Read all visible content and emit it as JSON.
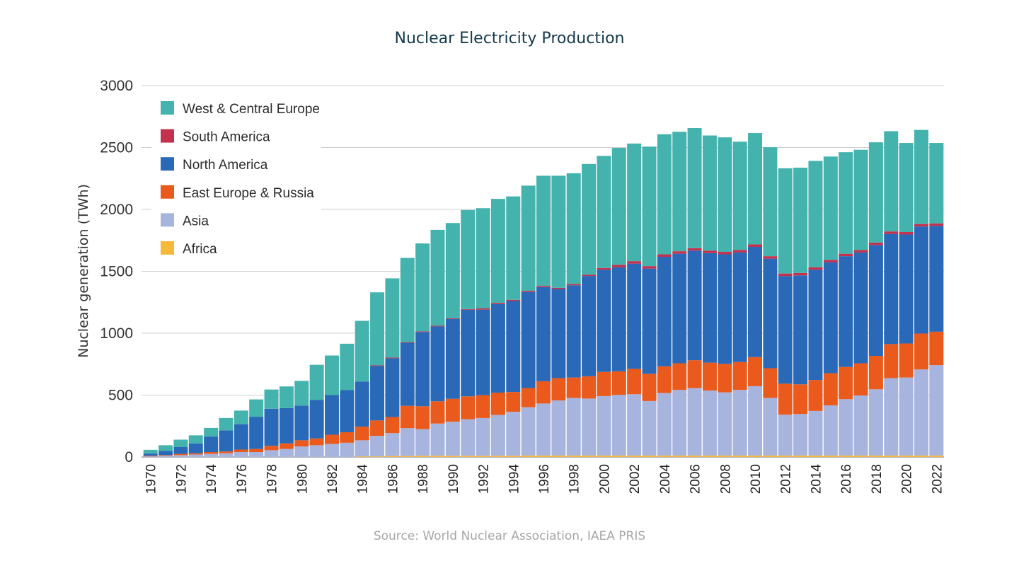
{
  "chart_data": {
    "type": "bar",
    "stacked": true,
    "title": "Nuclear Electricity Production",
    "ylabel": "Nuclear generation (TWh)",
    "xlabel": "",
    "ylim": [
      0,
      3000
    ],
    "yticks": [
      0,
      500,
      1000,
      1500,
      2000,
      2500,
      3000
    ],
    "grid": true,
    "legend_position": "top-left",
    "source": "Source: World Nuclear Association, IAEA PRIS",
    "categories": [
      "1970",
      "1971",
      "1972",
      "1973",
      "1974",
      "1975",
      "1976",
      "1977",
      "1978",
      "1979",
      "1980",
      "1981",
      "1982",
      "1983",
      "1984",
      "1985",
      "1986",
      "1987",
      "1988",
      "1989",
      "1990",
      "1991",
      "1992",
      "1993",
      "1994",
      "1995",
      "1996",
      "1997",
      "1998",
      "1999",
      "2000",
      "2001",
      "2002",
      "2003",
      "2004",
      "2005",
      "2006",
      "2007",
      "2008",
      "2009",
      "2010",
      "2011",
      "2012",
      "2013",
      "2014",
      "2015",
      "2016",
      "2017",
      "2018",
      "2019",
      "2020",
      "2021",
      "2022"
    ],
    "xtick_labels": [
      "1970",
      "",
      "1972",
      "",
      "1974",
      "",
      "1976",
      "",
      "1978",
      "",
      "1980",
      "",
      "1982",
      "",
      "1984",
      "",
      "1986",
      "",
      "1988",
      "",
      "1990",
      "",
      "1992",
      "",
      "1994",
      "",
      "1996",
      "",
      "1998",
      "",
      "2000",
      "",
      "2002",
      "",
      "2004",
      "",
      "2006",
      "",
      "2008",
      "",
      "2010",
      "",
      "2012",
      "",
      "2014",
      "",
      "2016",
      "",
      "2018",
      "",
      "2020",
      "",
      "2022"
    ],
    "series": [
      {
        "name": "Africa",
        "color": "#f7b93c",
        "values": [
          0,
          0,
          0,
          0,
          0,
          0,
          0,
          0,
          0,
          0,
          0,
          0,
          0,
          0,
          5,
          5,
          8,
          8,
          10,
          10,
          10,
          10,
          10,
          10,
          10,
          12,
          12,
          12,
          12,
          12,
          12,
          12,
          12,
          12,
          12,
          12,
          12,
          12,
          12,
          12,
          12,
          12,
          12,
          12,
          12,
          12,
          12,
          12,
          12,
          12,
          12,
          12,
          12
        ]
      },
      {
        "name": "Asia",
        "color": "#a7b4de",
        "values": [
          5,
          10,
          15,
          20,
          25,
          30,
          40,
          40,
          55,
          65,
          85,
          95,
          105,
          115,
          130,
          165,
          185,
          225,
          215,
          260,
          275,
          295,
          305,
          330,
          355,
          390,
          420,
          445,
          465,
          460,
          480,
          490,
          495,
          440,
          505,
          530,
          545,
          525,
          510,
          530,
          560,
          465,
          330,
          335,
          360,
          405,
          455,
          485,
          535,
          625,
          630,
          695,
          730
        ]
      },
      {
        "name": "East Europe & Russia",
        "color": "#ea5a1c",
        "values": [
          5,
          5,
          10,
          10,
          15,
          15,
          20,
          25,
          35,
          45,
          50,
          55,
          75,
          85,
          110,
          125,
          130,
          180,
          185,
          180,
          185,
          185,
          185,
          180,
          160,
          155,
          180,
          180,
          165,
          180,
          195,
          190,
          205,
          220,
          215,
          215,
          225,
          225,
          230,
          225,
          235,
          240,
          250,
          240,
          250,
          260,
          260,
          260,
          270,
          275,
          275,
          290,
          270
        ]
      },
      {
        "name": "North America",
        "color": "#2969b7",
        "values": [
          18,
          35,
          55,
          80,
          125,
          170,
          205,
          260,
          300,
          285,
          280,
          310,
          320,
          340,
          365,
          440,
          475,
          510,
          600,
          605,
          645,
          700,
          690,
          715,
          735,
          775,
          760,
          720,
          745,
          810,
          825,
          840,
          850,
          850,
          885,
          885,
          885,
          885,
          885,
          885,
          890,
          885,
          870,
          880,
          890,
          895,
          895,
          895,
          895,
          890,
          880,
          865,
          855
        ]
      },
      {
        "name": "South America",
        "color": "#c4314f",
        "values": [
          0,
          0,
          0,
          0,
          0,
          0,
          0,
          0,
          0,
          0,
          0,
          0,
          0,
          0,
          0,
          5,
          5,
          5,
          5,
          5,
          5,
          5,
          10,
          10,
          10,
          10,
          10,
          10,
          10,
          10,
          15,
          20,
          20,
          20,
          20,
          20,
          20,
          20,
          20,
          20,
          20,
          20,
          20,
          20,
          20,
          20,
          20,
          20,
          20,
          20,
          20,
          20,
          20
        ]
      },
      {
        "name": "West & Central Europe",
        "color": "#45b3ad",
        "values": [
          30,
          45,
          60,
          65,
          70,
          100,
          110,
          140,
          155,
          175,
          200,
          285,
          320,
          375,
          490,
          590,
          640,
          680,
          710,
          775,
          770,
          800,
          810,
          840,
          835,
          850,
          890,
          905,
          895,
          895,
          905,
          945,
          950,
          965,
          970,
          965,
          970,
          930,
          925,
          875,
          900,
          880,
          850,
          850,
          860,
          835,
          820,
          810,
          810,
          810,
          720,
          760,
          650
        ]
      }
    ]
  }
}
